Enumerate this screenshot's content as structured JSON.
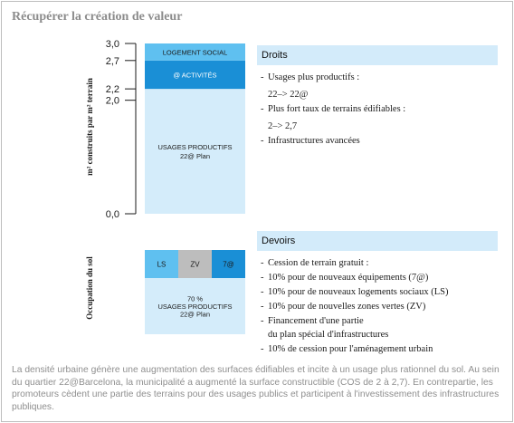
{
  "title": "Récupérer la création de valeur",
  "chart_data": [
    {
      "type": "bar",
      "stacked": true,
      "ylabel": "m² construits par m² terrain",
      "ylim": [
        0,
        3.0
      ],
      "ticks": [
        "3,0",
        "2,7",
        "2,2",
        "2,0",
        "0,0"
      ],
      "tick_values": [
        3.0,
        2.7,
        2.2,
        2.0,
        0.0
      ],
      "segments": [
        {
          "name": "USAGES PRODUCTIFS 22@ Plan",
          "label_lines": [
            "USAGES PRODUCTIFS",
            "22@ Plan"
          ],
          "from": 0.0,
          "to": 2.2,
          "color": "#d4ecfa",
          "text_color": "#1a1a1a"
        },
        {
          "name": "@ ACTIVITÉS",
          "label_lines": [
            "@ ACTIVITÉS"
          ],
          "from": 2.2,
          "to": 2.7,
          "color": "#1a8fd6",
          "text_color": "#ffffff"
        },
        {
          "name": "LOGEMENT SOCIAL",
          "label_lines": [
            "LOGEMENT SOCIAL"
          ],
          "from": 2.7,
          "to": 3.0,
          "color": "#5fc0f0",
          "text_color": "#1a1a1a"
        }
      ]
    },
    {
      "type": "bar",
      "ylabel": "Occupation du sol",
      "segments": [
        {
          "name": "LS",
          "color": "#5fc0f0",
          "text_color": "#1a1a1a"
        },
        {
          "name": "ZV",
          "color": "#bdbdbd",
          "text_color": "#1a1a1a"
        },
        {
          "name": "7@",
          "color": "#1a8fd6",
          "text_color": "#1a1a1a"
        }
      ],
      "base": {
        "name": "70 % USAGES PRODUCTIFS 22@ Plan",
        "label_lines": [
          "70 %",
          "USAGES PRODUCTIFS",
          "22@ Plan"
        ],
        "color": "#d4ecfa"
      }
    }
  ],
  "droits": {
    "heading": "Droits",
    "items": [
      {
        "text": "Usages plus productifs :",
        "sub": "22–> 22@"
      },
      {
        "text": "Plus fort taux de terrains édifiables :",
        "sub": "2–> 2,7"
      },
      {
        "text": "Infrastructures avancées",
        "sub": null
      }
    ]
  },
  "devoirs": {
    "heading": "Devoirs",
    "items": [
      {
        "dash": "-",
        "line1": "Cession de terrain gratuit :",
        "line2": null
      },
      {
        "dash": "- ",
        "line1": "10% pour de nouveaux équipements (7@)",
        "line2": null
      },
      {
        "dash": "- ",
        "line1": "10% pour de nouveaux logements sociaux (LS)",
        "line2": null
      },
      {
        "dash": "- ",
        "line1": "10% pour de nouvelles zones vertes (ZV)",
        "line2": null
      },
      {
        "dash": "-",
        "line1": "Financement d'une partie",
        "line2": "du plan spécial d'infrastructures"
      },
      {
        "dash": "-",
        "line1": "10% de cession pour l'aménagement urbain",
        "line2": null
      }
    ]
  },
  "caption": "La densité urbaine génère une augmentation des surfaces édifiables et incite à un usage plus rationnel du sol. Au sein du quartier 22@Barcelona, la municipalité a augmenté la surface constructible (COS de 2 à 2,7). En contrepartie, les promoteurs cèdent une partie des terrains pour des usages publics et participent à l'investissement des infrastructures publiques."
}
